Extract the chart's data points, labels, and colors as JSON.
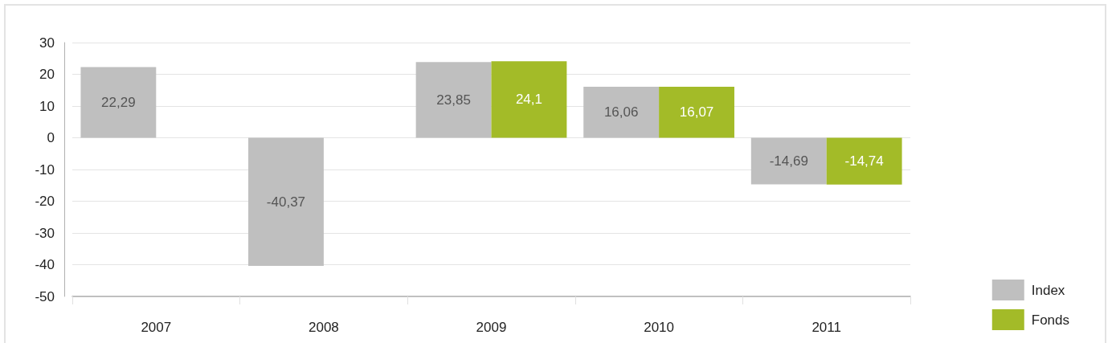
{
  "chart_data": {
    "type": "bar",
    "categories": [
      "2007",
      "2008",
      "2009",
      "2010",
      "2011"
    ],
    "series": [
      {
        "name": "Index",
        "color": "#bfbfbf",
        "values": [
          22.29,
          -40.37,
          23.85,
          16.06,
          -14.69
        ],
        "value_labels": [
          "22,29",
          "-40,37",
          "23,85",
          "16,06",
          "-14,69"
        ]
      },
      {
        "name": "Fonds",
        "color": "#a3bb28",
        "values": [
          null,
          null,
          24.1,
          16.07,
          -14.74
        ],
        "value_labels": [
          null,
          null,
          "24,1",
          "16,07",
          "-14,74"
        ]
      }
    ],
    "ylim": [
      -50,
      30
    ],
    "yticks": [
      -50,
      -40,
      -30,
      -20,
      -10,
      0,
      10,
      20,
      30
    ],
    "grid": "y",
    "legend": "bottom right"
  }
}
